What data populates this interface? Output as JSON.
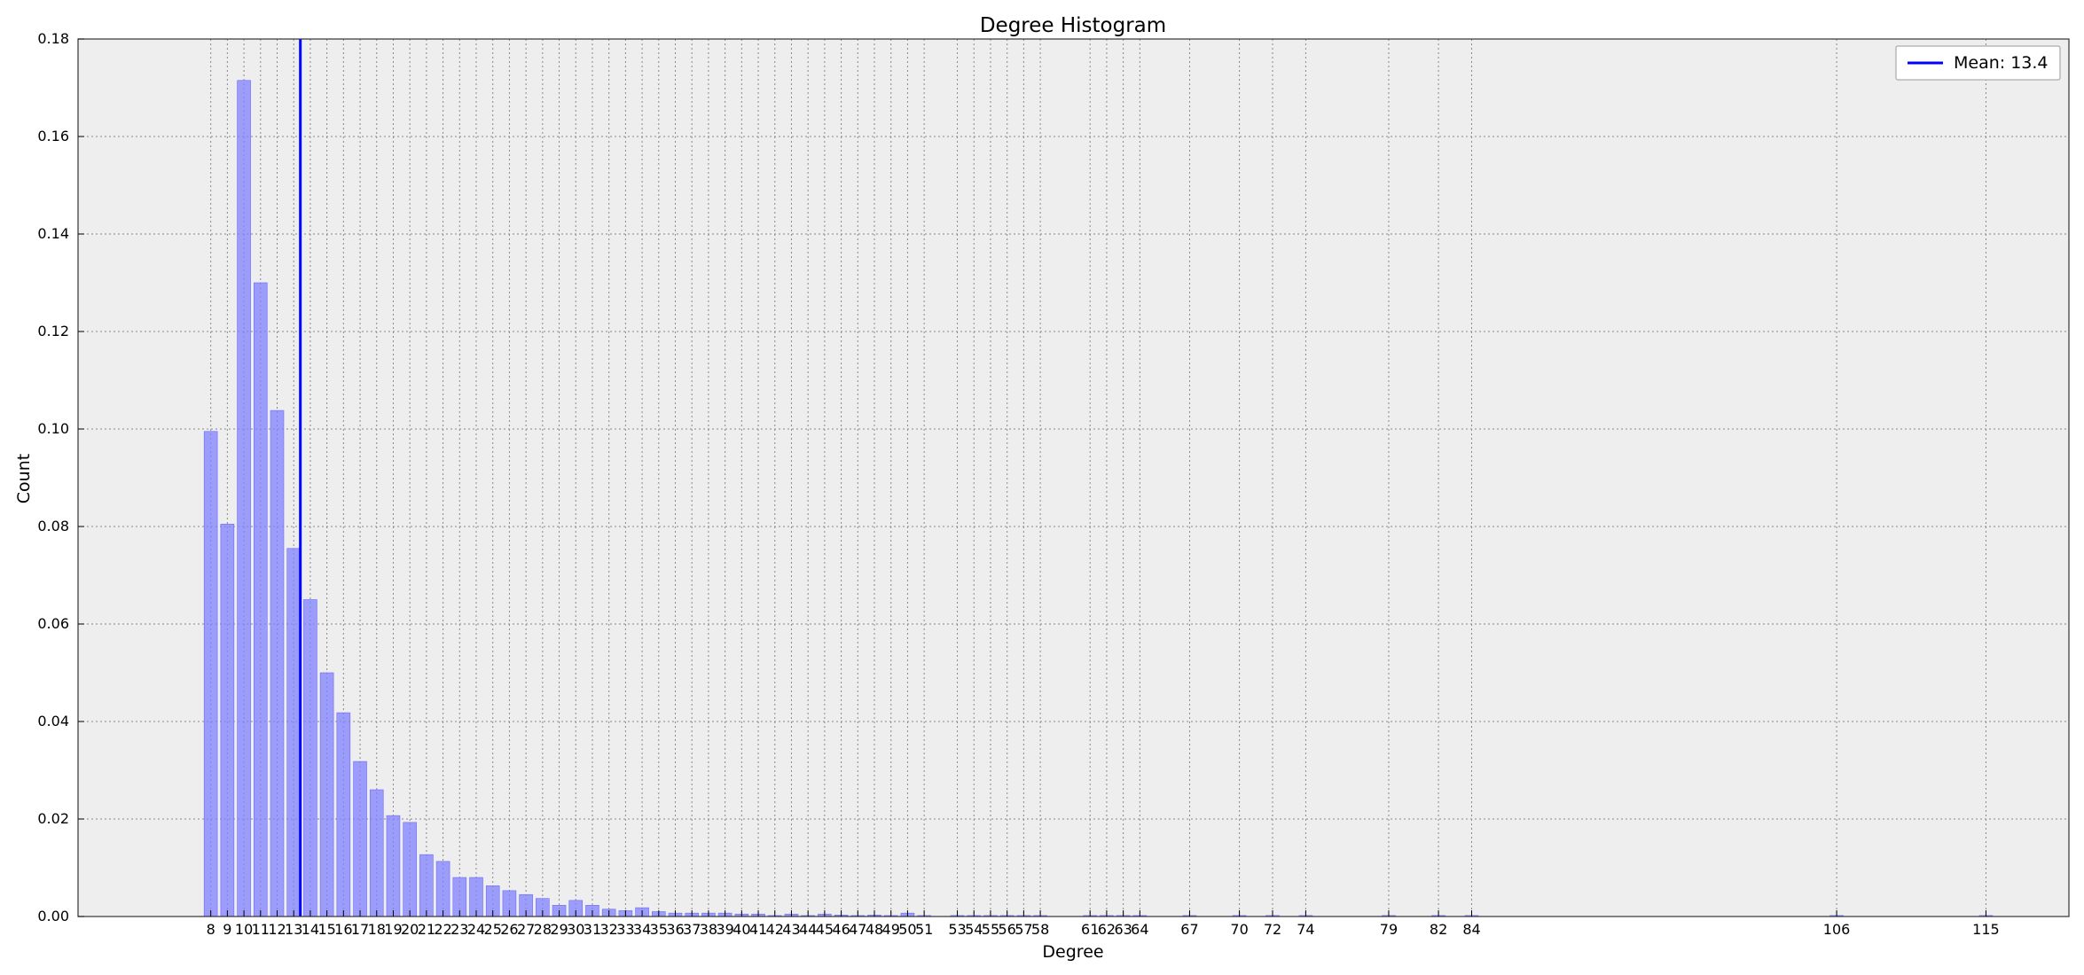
{
  "chart_data": {
    "type": "bar",
    "title": "Degree Histogram",
    "xlabel": "Degree",
    "ylabel": "Count",
    "ylim": [
      0,
      0.18
    ],
    "xlim": [
      0,
      120
    ],
    "yticks": [
      "0.00",
      "0.02",
      "0.04",
      "0.06",
      "0.08",
      "0.10",
      "0.12",
      "0.14",
      "0.16",
      "0.18"
    ],
    "grid": true,
    "legend_position": "top-right",
    "bar_color": "#8080ff",
    "plot_background": "#eeeeee",
    "mean_line": {
      "label": "Mean: 13.4",
      "value": 13.4,
      "color": "#0000ff"
    },
    "categories": [
      "8",
      "9",
      "10",
      "11",
      "12",
      "13",
      "14",
      "15",
      "16",
      "17",
      "18",
      "19",
      "20",
      "21",
      "22",
      "23",
      "24",
      "25",
      "26",
      "27",
      "28",
      "29",
      "30",
      "31",
      "32",
      "33",
      "34",
      "35",
      "36",
      "37",
      "38",
      "39",
      "40",
      "41",
      "42",
      "43",
      "44",
      "45",
      "46",
      "47",
      "48",
      "49",
      "50",
      "51",
      "53",
      "54",
      "55",
      "56",
      "57",
      "58",
      "61",
      "62",
      "63",
      "64",
      "67",
      "70",
      "72",
      "74",
      "79",
      "82",
      "84",
      "106",
      "115"
    ],
    "x": [
      8,
      9,
      10,
      11,
      12,
      13,
      14,
      15,
      16,
      17,
      18,
      19,
      20,
      21,
      22,
      23,
      24,
      25,
      26,
      27,
      28,
      29,
      30,
      31,
      32,
      33,
      34,
      35,
      36,
      37,
      38,
      39,
      40,
      41,
      42,
      43,
      44,
      45,
      46,
      47,
      48,
      49,
      50,
      51,
      53,
      54,
      55,
      56,
      57,
      58,
      61,
      62,
      63,
      64,
      67,
      70,
      72,
      74,
      79,
      82,
      84,
      106,
      115
    ],
    "values": [
      0.0995,
      0.0805,
      0.1715,
      0.13,
      0.1038,
      0.0755,
      0.065,
      0.05,
      0.0418,
      0.0318,
      0.026,
      0.0207,
      0.0193,
      0.0127,
      0.0113,
      0.008,
      0.008,
      0.0063,
      0.0053,
      0.0045,
      0.0037,
      0.0023,
      0.0033,
      0.0023,
      0.0015,
      0.0012,
      0.0018,
      0.001,
      0.0007,
      0.0007,
      0.0007,
      0.0007,
      0.0005,
      0.0005,
      0.0002,
      0.0005,
      0.0002,
      0.0005,
      0.0003,
      0.0002,
      0.0003,
      0.0002,
      0.0007,
      0.0002,
      0.0002,
      0.0002,
      0.0002,
      0.0002,
      0.0002,
      0.0002,
      0.0002,
      0.0002,
      0.0002,
      0.0002,
      0.0002,
      0.0002,
      0.0002,
      0.0002,
      0.0002,
      0.0002,
      0.0002,
      0.0002,
      0.0002
    ]
  }
}
